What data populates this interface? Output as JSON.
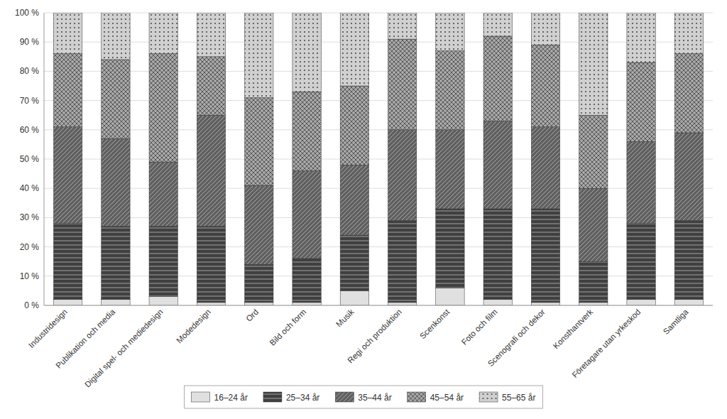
{
  "chart_data": {
    "type": "bar",
    "stacked": true,
    "grid": true,
    "legend": "bottom",
    "categories": [
      "Industridesign",
      "Publikation och media",
      "Digital spel- och mediedesign",
      "Modedesign",
      "Ord",
      "Bild och form",
      "Musik",
      "Regi och produktion",
      "Scenkonst",
      "Foto och film",
      "Scenografi och dekor",
      "Konsthantverk",
      "Företagare utan yrkeskod",
      "Samtliga"
    ],
    "series": [
      {
        "name": "16–24 år",
        "color": "#e0e0e0",
        "values": [
          2,
          2,
          3,
          1,
          1,
          1,
          5,
          1,
          6,
          2,
          1,
          1,
          2,
          2
        ]
      },
      {
        "name": "25–34 år",
        "color": "#404040",
        "values": [
          26,
          25,
          24,
          26,
          13,
          15,
          19,
          28,
          27,
          31,
          32,
          14,
          26,
          27
        ]
      },
      {
        "name": "35–44 år",
        "color": "#606060",
        "values": [
          33,
          30,
          22,
          38,
          27,
          30,
          24,
          31,
          27,
          30,
          28,
          25,
          28,
          30
        ]
      },
      {
        "name": "45–54 år",
        "color": "#a8a8a8",
        "values": [
          25,
          27,
          37,
          20,
          30,
          27,
          27,
          31,
          27,
          29,
          28,
          25,
          27,
          27
        ]
      },
      {
        "name": "55–65 år",
        "color": "#d0d0d0",
        "values": [
          14,
          16,
          14,
          15,
          29,
          27,
          25,
          9,
          13,
          8,
          11,
          35,
          17,
          14
        ]
      }
    ],
    "ylim": [
      0,
      100
    ],
    "yticks": [
      {
        "value": 0,
        "label": "0 %"
      },
      {
        "value": 10,
        "label": "10 %"
      },
      {
        "value": 20,
        "label": "20 %"
      },
      {
        "value": 30,
        "label": "30 %"
      },
      {
        "value": 40,
        "label": "40 %"
      },
      {
        "value": 50,
        "label": "50 %"
      },
      {
        "value": 60,
        "label": "60 %"
      },
      {
        "value": 70,
        "label": "70 %"
      },
      {
        "value": 80,
        "label": "80 %"
      },
      {
        "value": 90,
        "label": "90 %"
      },
      {
        "value": 100,
        "label": "100 %"
      }
    ]
  }
}
